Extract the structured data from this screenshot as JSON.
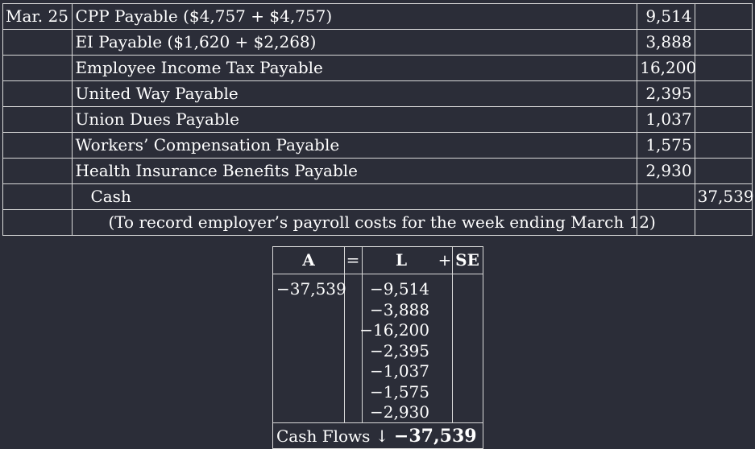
{
  "journal": {
    "rows": [
      {
        "date": "Mar. 25",
        "account": "CPP Payable ($4,757 + $4,757)",
        "debit": "9,514",
        "credit": "",
        "style": ""
      },
      {
        "date": "",
        "account": "EI Payable ($1,620 + $2,268)",
        "debit": "3,888",
        "credit": "",
        "style": ""
      },
      {
        "date": "",
        "account": "Employee Income Tax Payable",
        "debit": "16,200",
        "credit": "",
        "style": ""
      },
      {
        "date": "",
        "account": "United Way Payable",
        "debit": "2,395",
        "credit": "",
        "style": ""
      },
      {
        "date": "",
        "account": "Union Dues Payable",
        "debit": "1,037",
        "credit": "",
        "style": ""
      },
      {
        "date": "",
        "account": "Workers’ Compensation Payable",
        "debit": "1,575",
        "credit": "",
        "style": ""
      },
      {
        "date": "",
        "account": "Health Insurance Benefits Payable",
        "debit": "2,930",
        "credit": "",
        "style": ""
      },
      {
        "date": "",
        "account": "Cash",
        "debit": "",
        "credit": "37,539",
        "style": "indent"
      },
      {
        "date": "",
        "account": "(To record employer’s payroll costs for the week ending March 12)",
        "debit": "",
        "credit": "",
        "style": "memo"
      }
    ]
  },
  "effects": {
    "headers": {
      "a": "A",
      "eq": "=",
      "l": "L",
      "plus": "+",
      "se": "SE"
    },
    "assets": [
      "−37,539"
    ],
    "liabilities": [
      "−9,514",
      "−3,888",
      "−16,200",
      "−2,395",
      "−1,037",
      "−1,575",
      "−2,930"
    ],
    "cash_flows_label": "Cash Flows",
    "cash_flows_arrow": "↓",
    "cash_flows_value": "−37,539"
  }
}
